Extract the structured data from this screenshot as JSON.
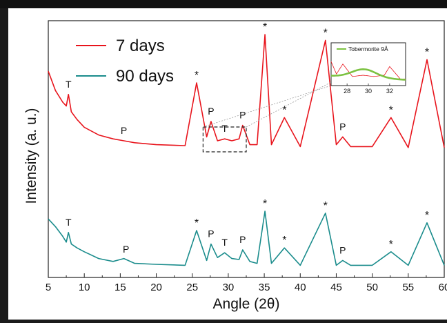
{
  "chart_data": {
    "type": "line",
    "xlabel": "Angle (2θ)",
    "ylabel": "Intensity (a. u.)",
    "xlim": [
      5,
      60
    ],
    "xticks": [
      5,
      10,
      15,
      20,
      25,
      30,
      35,
      40,
      45,
      50,
      55,
      60
    ],
    "xtick_labels": [
      "5",
      "10",
      "15",
      "20",
      "25",
      "30",
      "35",
      "40",
      "45",
      "50",
      "55",
      "60"
    ],
    "legend_placement": "top-left",
    "series": [
      {
        "name": "7 days",
        "color": "#e8141c",
        "baseline": 0.6,
        "x": [
          5,
          6,
          7,
          7.5,
          7.8,
          8.2,
          9,
          10,
          12,
          14,
          15.5,
          17,
          20,
          24,
          25.6,
          27,
          27.6,
          28.5,
          29.5,
          30.5,
          31.5,
          32,
          33,
          34,
          35.1,
          36,
          37.8,
          40,
          43.5,
          45,
          45.9,
          47,
          50,
          52.6,
          55,
          57.6,
          60
        ],
        "y": [
          4.6,
          3.6,
          3.0,
          2.8,
          3.4,
          2.5,
          2.1,
          1.7,
          1.3,
          1.1,
          1.0,
          0.9,
          0.8,
          0.75,
          4.0,
          1.2,
          2.0,
          1.0,
          1.1,
          1.0,
          1.1,
          1.8,
          0.8,
          0.8,
          6.5,
          0.8,
          2.2,
          0.7,
          6.2,
          0.8,
          1.2,
          0.7,
          0.7,
          2.2,
          0.65,
          5.2,
          0.65
        ]
      },
      {
        "name": "90 days",
        "color": "#1a8c8c",
        "baseline": 0.0,
        "x": [
          5,
          6,
          7,
          7.5,
          7.8,
          8.2,
          9,
          10,
          12,
          14,
          15.5,
          17,
          20,
          24,
          25.6,
          27,
          27.6,
          28.5,
          29.5,
          30.5,
          31.5,
          32,
          33,
          34,
          35.1,
          36,
          37.8,
          40,
          43.5,
          45,
          45.9,
          47,
          50,
          52.6,
          55,
          57.6,
          60
        ],
        "y": [
          2.6,
          2.2,
          1.7,
          1.4,
          1.9,
          1.3,
          1.1,
          0.9,
          0.55,
          0.4,
          0.55,
          0.3,
          0.25,
          0.2,
          2.0,
          0.45,
          1.3,
          0.6,
          0.85,
          0.55,
          0.5,
          1.0,
          0.4,
          0.3,
          3.0,
          0.3,
          1.1,
          0.2,
          2.9,
          0.2,
          0.45,
          0.2,
          0.2,
          0.9,
          0.2,
          2.4,
          0.2
        ]
      }
    ],
    "peak_labels": [
      {
        "x": 7.8,
        "label": "T",
        "series": "7 days"
      },
      {
        "x": 15.5,
        "label": "P",
        "series": "7 days"
      },
      {
        "x": 25.6,
        "label": "*",
        "series": "7 days"
      },
      {
        "x": 27.6,
        "label": "P",
        "series": "7 days"
      },
      {
        "x": 29.5,
        "label": "T",
        "series": "7 days"
      },
      {
        "x": 32.0,
        "label": "P",
        "series": "7 days"
      },
      {
        "x": 35.1,
        "label": "*",
        "series": "7 days"
      },
      {
        "x": 37.8,
        "label": "*",
        "series": "7 days"
      },
      {
        "x": 43.5,
        "label": "*",
        "series": "7 days"
      },
      {
        "x": 45.9,
        "label": "P",
        "series": "7 days"
      },
      {
        "x": 52.6,
        "label": "*",
        "series": "7 days"
      },
      {
        "x": 57.6,
        "label": "*",
        "series": "7 days"
      },
      {
        "x": 7.8,
        "label": "T",
        "series": "90 days"
      },
      {
        "x": 15.8,
        "label": "P",
        "series": "90 days"
      },
      {
        "x": 25.6,
        "label": "*",
        "series": "90 days"
      },
      {
        "x": 27.6,
        "label": "P",
        "series": "90 days"
      },
      {
        "x": 29.5,
        "label": "T",
        "series": "90 days"
      },
      {
        "x": 32.0,
        "label": "P",
        "series": "90 days"
      },
      {
        "x": 35.1,
        "label": "*",
        "series": "90 days"
      },
      {
        "x": 37.8,
        "label": "*",
        "series": "90 days"
      },
      {
        "x": 43.5,
        "label": "*",
        "series": "90 days"
      },
      {
        "x": 45.9,
        "label": "P",
        "series": "90 days"
      },
      {
        "x": 52.6,
        "label": "*",
        "series": "90 days"
      },
      {
        "x": 57.6,
        "label": "*",
        "series": "90 days"
      }
    ],
    "zoom_box": {
      "xlim": [
        26.5,
        32.5
      ]
    },
    "inset": {
      "legend_label": "Tobermorite 9Å",
      "legend_color": "#7cc242",
      "xticks": [
        28,
        30,
        32
      ],
      "xtick_labels": [
        "28",
        "30",
        "32"
      ],
      "xlim": [
        26.5,
        33.5
      ]
    }
  }
}
